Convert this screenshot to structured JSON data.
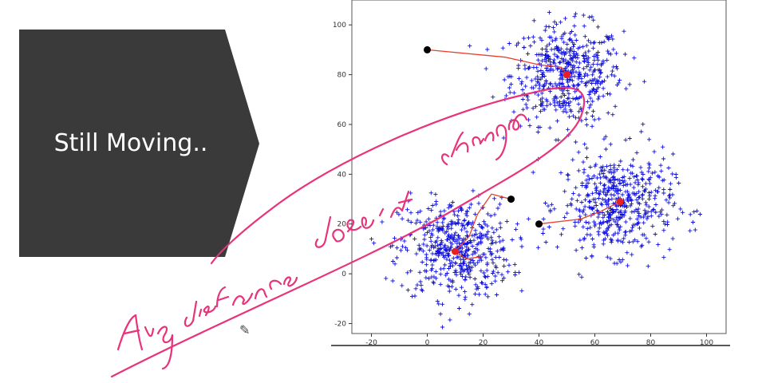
{
  "slide": {
    "arrow_label": "Still Moving..",
    "arrow_color": "#3a3a3a",
    "ink_color": "#e8337a",
    "handwritten_note": "Avg distance doesn't change",
    "cursor_icon": "pencil-cursor-icon"
  },
  "chart_data": {
    "type": "scatter",
    "title": "",
    "xlabel": "",
    "ylabel": "",
    "xlim": [
      -27,
      107
    ],
    "ylim": [
      -24,
      110
    ],
    "xticks": [
      -20,
      0,
      20,
      40,
      60,
      80,
      100
    ],
    "yticks": [
      -20,
      0,
      20,
      40,
      60,
      80,
      100
    ],
    "grid": false,
    "point_color": "#1010e0",
    "point_marker": "+",
    "clusters": [
      {
        "center": [
          50,
          80
        ],
        "spread": 10,
        "count": 520
      },
      {
        "center": [
          10,
          10
        ],
        "spread": 10,
        "count": 520
      },
      {
        "center": [
          68,
          28
        ],
        "spread": 10,
        "count": 520
      }
    ],
    "initial_centroids": [
      [
        0,
        90
      ],
      [
        30,
        30
      ],
      [
        40,
        20
      ]
    ],
    "current_centroids": [
      [
        50,
        80
      ],
      [
        10,
        9
      ],
      [
        69,
        29
      ]
    ],
    "centroid_paths": [
      [
        [
          0,
          90
        ],
        [
          28,
          87
        ],
        [
          40,
          84
        ],
        [
          48,
          83
        ],
        [
          50,
          80
        ]
      ],
      [
        [
          30,
          30
        ],
        [
          23,
          32
        ],
        [
          18,
          24
        ],
        [
          15,
          15
        ],
        [
          10,
          9
        ],
        [
          14,
          6
        ],
        [
          20,
          7
        ]
      ],
      [
        [
          40,
          20
        ],
        [
          55,
          22
        ],
        [
          62,
          25
        ],
        [
          69,
          29
        ]
      ]
    ],
    "initial_centroid_color": "#000000",
    "current_centroid_color": "#e82020",
    "path_color": "#e84030"
  }
}
